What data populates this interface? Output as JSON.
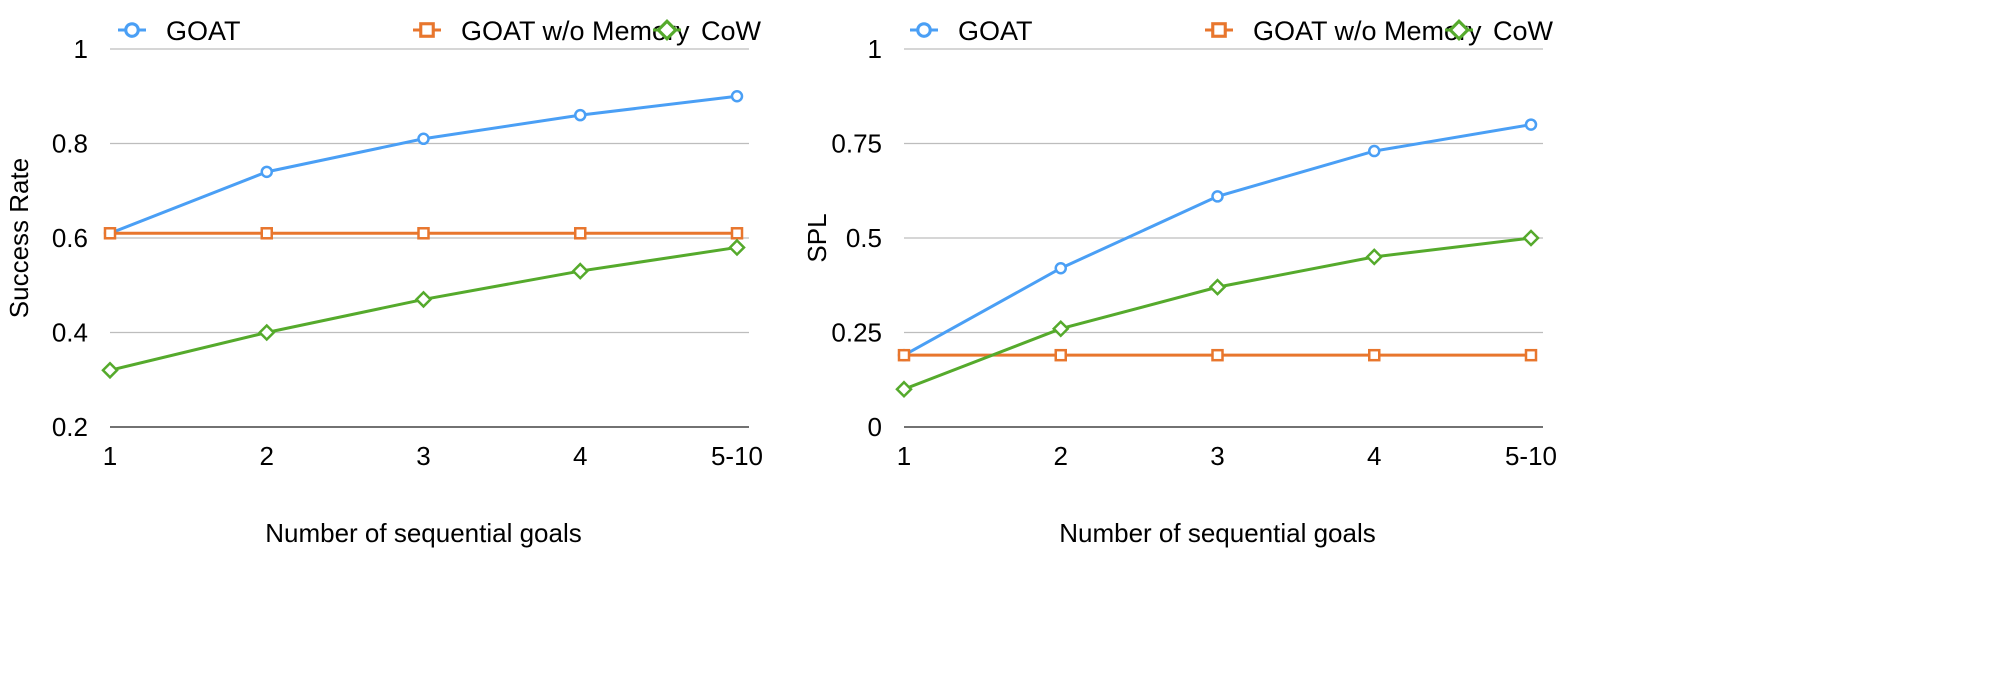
{
  "colors": {
    "GOAT": "#4a9ff5",
    "GOAT w/o Memory": "#e8762d",
    "CoW": "#55aa2c"
  },
  "chart_data": [
    {
      "type": "line",
      "title": "",
      "xlabel": "Number of sequential goals",
      "ylabel": "Success Rate",
      "categories": [
        "1",
        "2",
        "3",
        "4",
        "5-10"
      ],
      "ylim": [
        0.2,
        1
      ],
      "yticks": [
        0.2,
        0.4,
        0.6,
        0.8,
        1
      ],
      "ytick_labels": [
        "0.2",
        "0.4",
        "0.6",
        "0.8",
        "1"
      ],
      "grid": true,
      "legend": "top",
      "series": [
        {
          "name": "GOAT",
          "marker": "circle",
          "values": [
            0.61,
            0.74,
            0.81,
            0.86,
            0.9
          ]
        },
        {
          "name": "GOAT w/o Memory",
          "marker": "square",
          "values": [
            0.61,
            0.61,
            0.61,
            0.61,
            0.61
          ]
        },
        {
          "name": "CoW",
          "marker": "diamond",
          "values": [
            0.32,
            0.4,
            0.47,
            0.53,
            0.58
          ]
        }
      ]
    },
    {
      "type": "line",
      "title": "",
      "xlabel": "Number of sequential goals",
      "ylabel": "SPL",
      "categories": [
        "1",
        "2",
        "3",
        "4",
        "5-10"
      ],
      "ylim": [
        0,
        1
      ],
      "yticks": [
        0,
        0.25,
        0.5,
        0.75,
        1
      ],
      "ytick_labels": [
        "0",
        "0.25",
        "0.5",
        "0.75",
        "1"
      ],
      "grid": true,
      "legend": "top",
      "series": [
        {
          "name": "GOAT",
          "marker": "circle",
          "values": [
            0.19,
            0.42,
            0.61,
            0.73,
            0.8
          ]
        },
        {
          "name": "GOAT w/o Memory",
          "marker": "square",
          "values": [
            0.19,
            0.19,
            0.19,
            0.19,
            0.19
          ]
        },
        {
          "name": "CoW",
          "marker": "diamond",
          "values": [
            0.1,
            0.26,
            0.37,
            0.45,
            0.5
          ]
        }
      ]
    }
  ]
}
